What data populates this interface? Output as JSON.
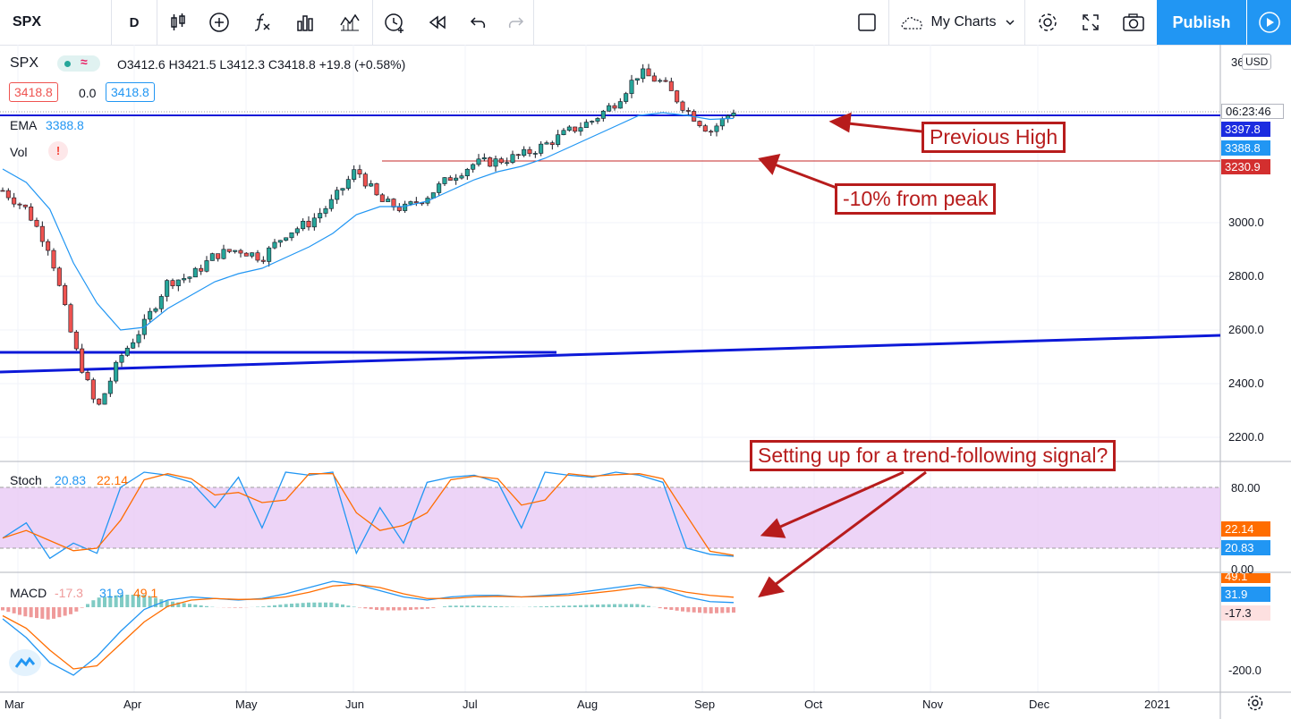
{
  "toolbar": {
    "symbol": "SPX",
    "interval": "D",
    "my_charts": "My Charts",
    "publish": "Publish"
  },
  "legend": {
    "symbol": "SPX",
    "ohlc": "O3412.6  H3421.5  L3412.3  C3418.8  +19.8 (+0.58%)",
    "bid": "3418.8",
    "spread": "0.0",
    "ask": "3418.8",
    "ema_label": "EMA",
    "ema_value": "3388.8",
    "vol_label": "Vol",
    "vol_warning": "!",
    "stoch_label": "Stoch",
    "stoch_k": "20.83",
    "stoch_d": "22.14",
    "macd_label": "MACD",
    "macd_hist": "-17.3",
    "macd_line": "31.9",
    "macd_signal": "49.1"
  },
  "price_axis": {
    "currency": "USD",
    "top_partial": "36",
    "ticks": [
      "3000.0",
      "2800.0",
      "2600.0",
      "2400.0",
      "2200.0"
    ],
    "countdown": "06:23:46",
    "tags": {
      "line": "3397.8",
      "ema": "3388.8",
      "ten_pct": "3230.9"
    }
  },
  "stoch_axis": {
    "ticks": [
      "80.00",
      "0.00"
    ],
    "tags": {
      "d": "22.14",
      "k": "20.83"
    }
  },
  "macd_axis": {
    "ticks": [
      "-200.0"
    ],
    "tags": {
      "signal": "49.1",
      "line": "31.9",
      "hist": "-17.3"
    }
  },
  "time_axis": [
    "Mar",
    "Apr",
    "May",
    "Jun",
    "Jul",
    "Aug",
    "Sep",
    "Oct",
    "Nov",
    "Dec",
    "2021"
  ],
  "annotations": {
    "previous_high": "Previous High",
    "ten_pct": "-10% from peak",
    "signal": "Setting up for a trend-following signal?"
  },
  "colors": {
    "up": "#26a69a",
    "down": "#ef5350",
    "ema": "#2196f3",
    "stoch_k": "#2196f3",
    "stoch_d": "#ff6d00",
    "band": "#e1bee7",
    "trendline": "#0d19d8",
    "annotation": "#b71c1c",
    "accent": "#2196f3"
  },
  "chart_data": {
    "type": "line",
    "title": "SPX",
    "ylim": [
      2150,
      3600
    ],
    "x": [
      "Feb 26",
      "Mar 3",
      "Mar 9",
      "Mar 16",
      "Mar 23",
      "Mar 30",
      "Apr 6",
      "Apr 13",
      "Apr 20",
      "Apr 27",
      "May 4",
      "May 11",
      "May 18",
      "May 26",
      "Jun 1",
      "Jun 8",
      "Jun 15",
      "Jun 22",
      "Jun 29",
      "Jul 6",
      "Jul 13",
      "Jul 20",
      "Jul 27",
      "Aug 3",
      "Aug 10",
      "Aug 17",
      "Aug 24",
      "Aug 31",
      "Sep 2",
      "Sep 4",
      "Sep 8",
      "Sep 10"
    ],
    "series": [
      {
        "name": "SPX",
        "values": [
          3120,
          3050,
          2900,
          2550,
          2300,
          2500,
          2620,
          2780,
          2800,
          2880,
          2900,
          2870,
          2960,
          3000,
          3080,
          3200,
          3080,
          3050,
          3100,
          3170,
          3220,
          3230,
          3250,
          3290,
          3340,
          3380,
          3450,
          3560,
          3520,
          3420,
          3340,
          3418.8
        ]
      },
      {
        "name": "EMA",
        "values": [
          3200,
          3150,
          3050,
          2850,
          2700,
          2600,
          2610,
          2680,
          2730,
          2780,
          2810,
          2830,
          2870,
          2910,
          2960,
          3030,
          3060,
          3060,
          3080,
          3120,
          3160,
          3190,
          3210,
          3240,
          3280,
          3320,
          3360,
          3400,
          3410,
          3400,
          3385,
          3388.8
        ]
      }
    ],
    "levels": {
      "previous_high": 3397.8,
      "ten_pct_from_peak": 3230.9
    },
    "stoch": {
      "k": 20.83,
      "d": 22.14,
      "band": [
        20,
        80
      ]
    },
    "macd": {
      "hist": -17.3,
      "macd": 31.9,
      "signal": 49.1
    }
  }
}
